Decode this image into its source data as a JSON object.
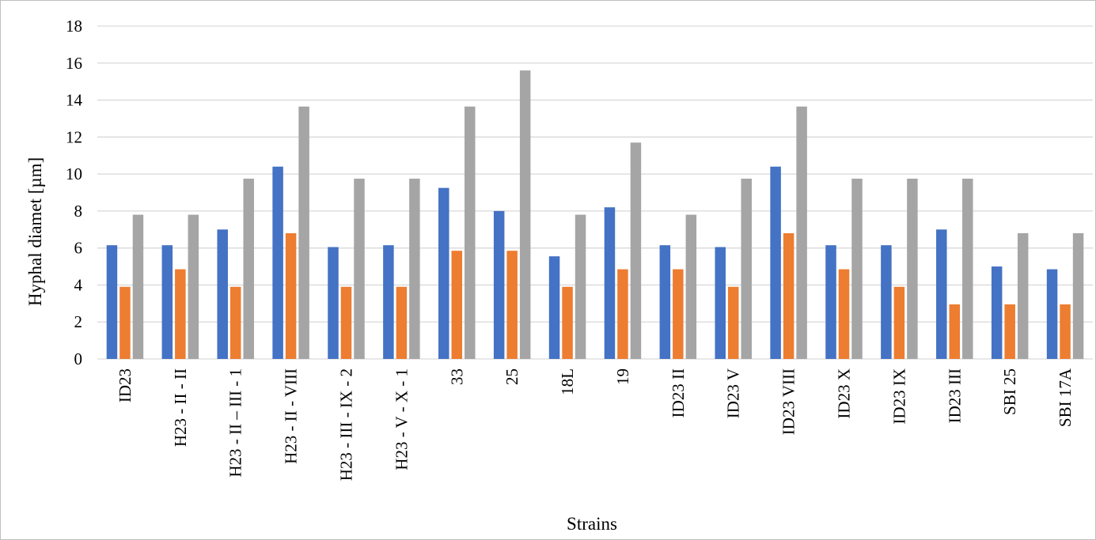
{
  "chart_data": {
    "type": "bar",
    "xlabel": "Strains",
    "ylabel": "Hyphal diamet [µm]",
    "ylim": [
      0,
      18
    ],
    "yticks": [
      0,
      2,
      4,
      6,
      8,
      10,
      12,
      14,
      16,
      18
    ],
    "grid": true,
    "legend": "none",
    "categories": [
      "ID23",
      "H23 - II - II",
      "H23 - II – III - 1",
      "H23 - II - VIII",
      "H23 - III - IX - 2",
      "H23 - V - X - 1",
      "33",
      "25",
      "18L",
      "19",
      "ID23 II",
      "ID23 V",
      "ID23 VIII",
      "ID23 X",
      "ID23 IX",
      "ID23 III",
      "SBI 25",
      "SBI 17A"
    ],
    "series": [
      {
        "color": "#4472c4",
        "values": [
          6.15,
          6.15,
          7.0,
          10.4,
          6.05,
          6.15,
          9.25,
          8.0,
          5.55,
          8.2,
          6.15,
          6.05,
          10.4,
          6.15,
          6.15,
          7.0,
          5.0,
          4.85
        ]
      },
      {
        "color": "#ed7d31",
        "values": [
          3.9,
          4.85,
          3.9,
          6.8,
          3.9,
          3.9,
          5.85,
          5.85,
          3.9,
          4.85,
          4.85,
          3.9,
          6.8,
          4.85,
          3.9,
          2.95,
          2.95,
          2.95
        ]
      },
      {
        "color": "#a5a5a5",
        "values": [
          7.8,
          7.8,
          9.75,
          13.65,
          9.75,
          9.75,
          13.65,
          15.6,
          7.8,
          11.7,
          7.8,
          9.75,
          13.65,
          9.75,
          9.75,
          9.75,
          6.8,
          6.8
        ]
      }
    ]
  }
}
